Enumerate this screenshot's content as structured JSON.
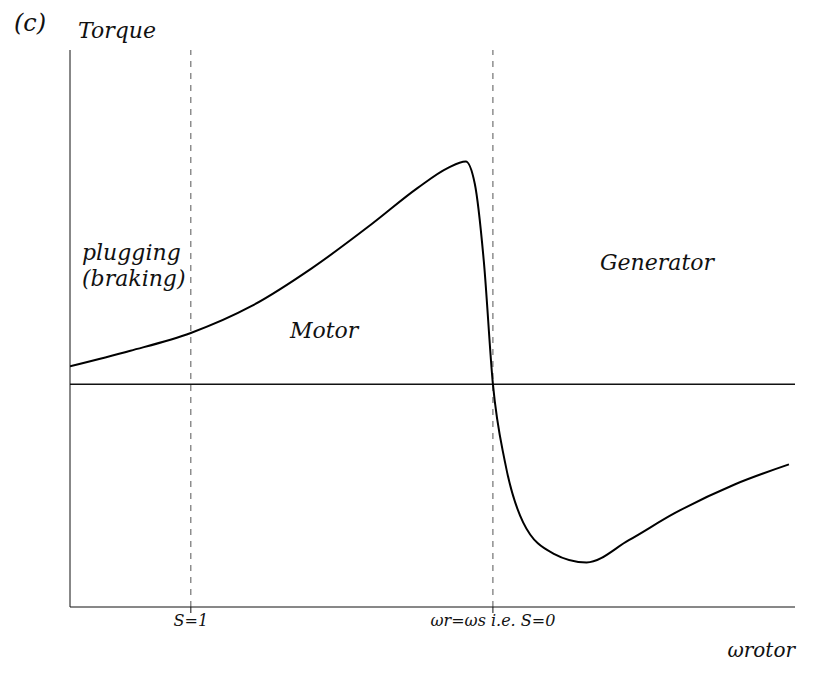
{
  "chart_data": {
    "type": "line",
    "title": "(c)",
    "x_label": "ωrotor",
    "y_label": "Torque",
    "x": [
      -0.4,
      -0.2,
      0,
      0.2,
      0.4,
      0.6,
      0.75,
      0.85,
      0.91,
      0.94,
      0.97,
      1.0,
      1.04,
      1.1,
      1.2,
      1.31,
      1.45,
      1.6,
      1.8,
      1.98
    ],
    "values": [
      0.08,
      0.15,
      0.23,
      0.35,
      0.52,
      0.72,
      0.88,
      0.97,
      1.0,
      0.9,
      0.55,
      0,
      -0.35,
      -0.62,
      -0.76,
      -0.8,
      -0.7,
      -0.58,
      -0.45,
      -0.36
    ],
    "color": "#000000",
    "xlim": [
      -0.4,
      2
    ],
    "ylim": [
      -1,
      1.5
    ],
    "xticks": [
      {
        "value": 0,
        "label": "S=1"
      },
      {
        "value": 1,
        "label": "ωr=ωs i.e. S=0"
      }
    ],
    "tick_labels": "x",
    "annotations": [
      "plugging (braking)",
      "Motor",
      "Generator"
    ]
  }
}
